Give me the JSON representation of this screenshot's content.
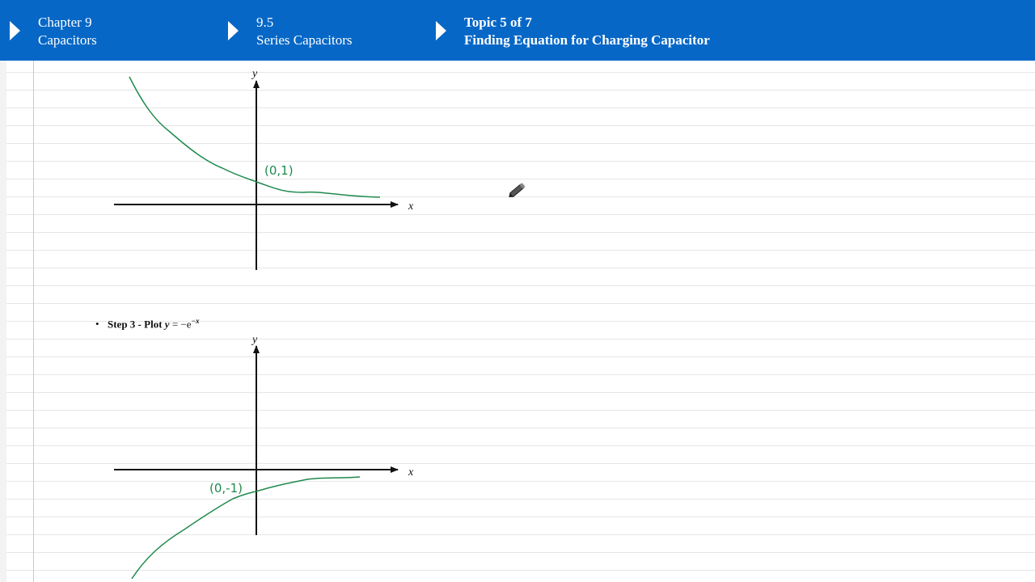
{
  "breadcrumbs": [
    {
      "line1": "Chapter 9",
      "line2": "Capacitors"
    },
    {
      "line1": "9.5",
      "line2": "Series Capacitors"
    },
    {
      "line1": "Topic 5 of 7",
      "line2": "Finding Equation for Charging Capacitor"
    }
  ],
  "step3": {
    "bullet": "•",
    "label": "Step 3 - Plot",
    "equation_lhs": "y",
    "equation_rhs": "= −e",
    "exponent": "−x"
  },
  "graph1": {
    "x_label": "x",
    "y_label": "y",
    "point_label": "(0,1)"
  },
  "graph2": {
    "x_label": "x",
    "y_label": "y",
    "point_label": "(0,-1)"
  },
  "icons": {
    "pen": "pen-cursor-icon",
    "breadcrumb_arrow": "triangle-right-icon"
  },
  "colors": {
    "header_bg": "#0667c6",
    "ink": "#1f8a4c",
    "margin": "#f0b8b8"
  }
}
